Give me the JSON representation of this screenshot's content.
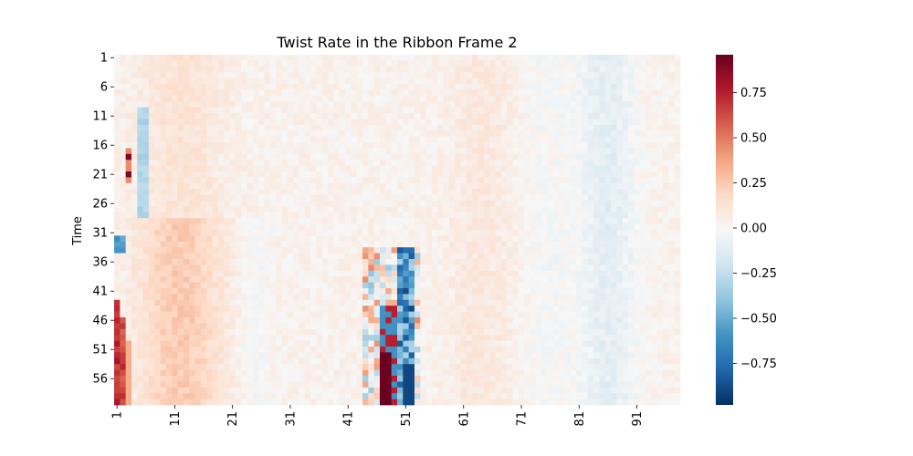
{
  "chart_data": {
    "type": "heatmap",
    "title": "Twist Rate in the Ribbon Frame 2",
    "xlabel": "",
    "ylabel": "Time",
    "x_tick_labels": [
      "1",
      "11",
      "21",
      "31",
      "41",
      "51",
      "61",
      "71",
      "81",
      "91"
    ],
    "y_tick_labels": [
      "1",
      "6",
      "11",
      "16",
      "21",
      "26",
      "31",
      "36",
      "41",
      "46",
      "51",
      "56"
    ],
    "n_cols": 98,
    "n_rows": 60,
    "colormap": "RdBu_r",
    "vmin": -0.98,
    "vmax": 0.96,
    "colorbar_ticks": [
      "0.75",
      "0.50",
      "0.25",
      "0.00",
      "−0.25",
      "−0.50",
      "−0.75"
    ],
    "colorbar_tick_values": [
      0.75,
      0.5,
      0.25,
      0.0,
      -0.25,
      -0.5,
      -0.75
    ]
  }
}
